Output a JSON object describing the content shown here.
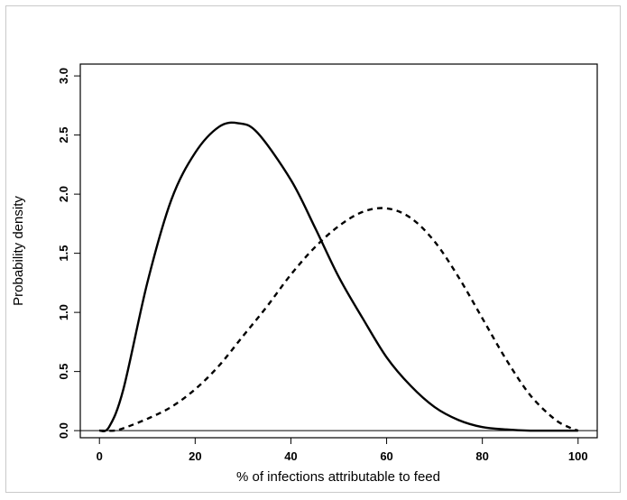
{
  "chart_data": {
    "type": "line",
    "title": "",
    "xlabel": "% of infections attributable to feed",
    "ylabel": "Probability density",
    "xlim": [
      -4,
      104
    ],
    "ylim": [
      -0.06,
      3.1
    ],
    "x_ticks": [
      0,
      20,
      40,
      60,
      80,
      100
    ],
    "x_tick_labels": [
      "0",
      "20",
      "40",
      "60",
      "80",
      "100"
    ],
    "y_ticks": [
      0.0,
      0.5,
      1.0,
      1.5,
      2.0,
      2.5,
      3.0
    ],
    "y_tick_labels": [
      "0.0",
      "0.5",
      "1.0",
      "1.5",
      "2.0",
      "2.5",
      "3.0"
    ],
    "grid": false,
    "legend": "none",
    "series": [
      {
        "style": "solid",
        "color": "#000000",
        "x": [
          0,
          2,
          5,
          10,
          15,
          20,
          25,
          29,
          33,
          40,
          45,
          50,
          55,
          60,
          65,
          70,
          75,
          80,
          85,
          90,
          95,
          100
        ],
        "y": [
          0.0,
          0.03,
          0.35,
          1.25,
          1.95,
          2.35,
          2.57,
          2.6,
          2.52,
          2.12,
          1.72,
          1.3,
          0.95,
          0.62,
          0.38,
          0.2,
          0.09,
          0.03,
          0.01,
          0.0,
          0.0,
          0.0
        ]
      },
      {
        "style": "dashed",
        "color": "#000000",
        "x": [
          0,
          3,
          5,
          10,
          15,
          20,
          25,
          30,
          35,
          40,
          45,
          50,
          55,
          60,
          65,
          70,
          75,
          80,
          85,
          90,
          95,
          98,
          100
        ],
        "y": [
          0.0,
          0.0,
          0.02,
          0.1,
          0.2,
          0.35,
          0.55,
          0.8,
          1.05,
          1.32,
          1.55,
          1.73,
          1.85,
          1.88,
          1.8,
          1.6,
          1.3,
          0.95,
          0.6,
          0.3,
          0.1,
          0.03,
          0.0
        ]
      }
    ]
  }
}
